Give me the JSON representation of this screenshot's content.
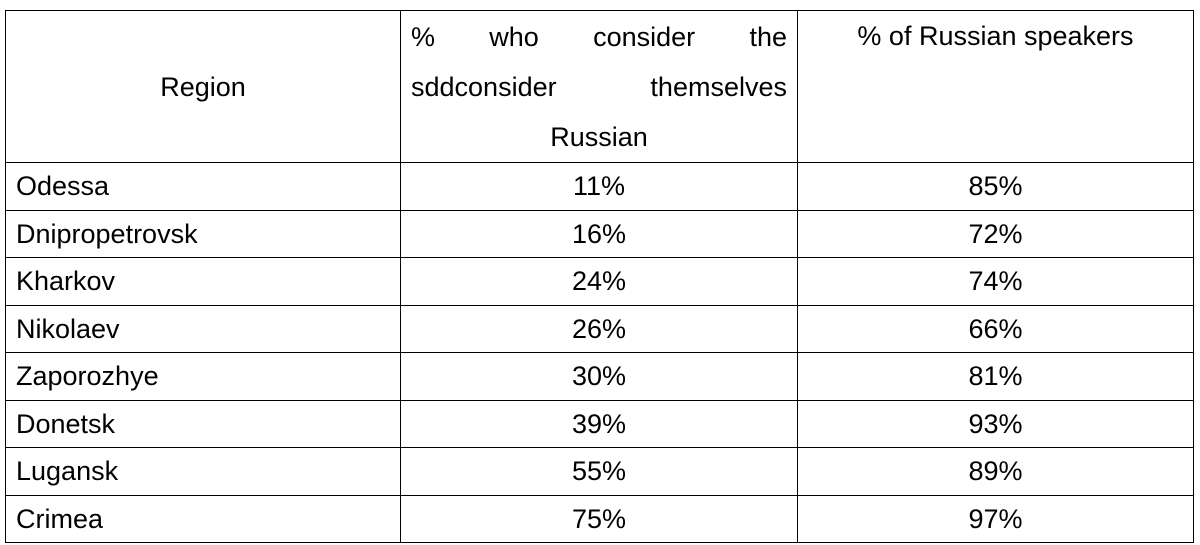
{
  "table": {
    "header": [
      "Region",
      "% who consider the sddconsider themselves Russian",
      "% of Russian speakers"
    ],
    "rows": [
      [
        "Odessa",
        "11%",
        "85%"
      ],
      [
        "Dnipropetrovsk",
        "16%",
        "72%"
      ],
      [
        "Kharkov",
        "24%",
        "74%"
      ],
      [
        "Nikolaev",
        "26%",
        "66%"
      ],
      [
        "Zaporozhye",
        "30%",
        "81%"
      ],
      [
        "Donetsk",
        "39%",
        "93%"
      ],
      [
        "Lugansk",
        "55%",
        "89%"
      ],
      [
        "Crimea",
        "75%",
        "97%"
      ]
    ]
  }
}
